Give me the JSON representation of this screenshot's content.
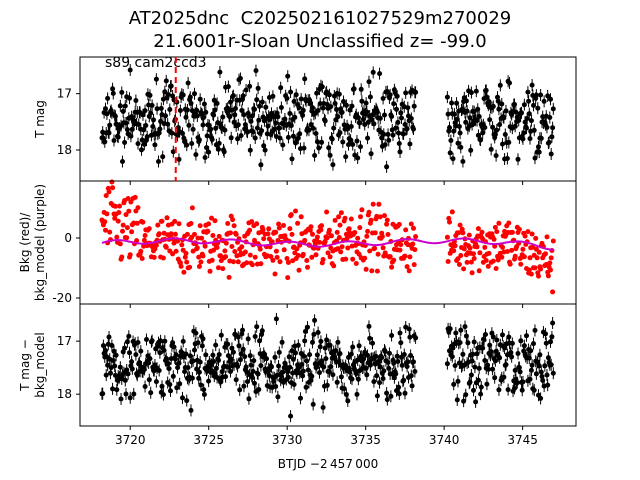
{
  "chart_data": {
    "type": "scatter",
    "title_lines": [
      "AT2025dnc  C202502161027529m270029",
      "21.6001r-Sloan Unclassified z= -99.0"
    ],
    "annotation": "s89 cam2ccd3",
    "xlabel": "BTJD −2 457 000",
    "xlim": [
      3716.8,
      3748.4
    ],
    "xticks": [
      3720,
      3725,
      3730,
      3735,
      3740,
      3745
    ],
    "event_marker_x": 3722.9,
    "event_marker_color": "#ff0000",
    "gap": [
      3738.2,
      3740.2
    ],
    "data_range": [
      3718.2,
      3747.0
    ],
    "panels": [
      {
        "id": "tmag",
        "ylabel": [
          "T mag"
        ],
        "ylim": [
          18.55,
          16.35
        ],
        "yticks": [
          17,
          18
        ],
        "inverted": true,
        "series": [
          {
            "name": "",
            "color": "#000000",
            "style": "points-with-errorbars",
            "center": 17.45,
            "spread": 0.55,
            "min": 16.55,
            "max": 18.45
          }
        ]
      },
      {
        "id": "bkg",
        "ylabel": [
          "Bkg (red)/",
          "bkg_model (purple)"
        ],
        "ylim": [
          -22,
          19
        ],
        "yticks": [
          0,
          -20
        ],
        "inverted": false,
        "series": [
          {
            "name": "Bkg",
            "color": "#ff0000",
            "style": "points",
            "center": -2,
            "spread": 8
          },
          {
            "name": "bkg_model",
            "color": "#cc00cc",
            "style": "line",
            "center": -1.5
          }
        ]
      },
      {
        "id": "tmag_corr",
        "ylabel": [
          "T mag −",
          "bkg_model"
        ],
        "ylim": [
          18.6,
          16.3
        ],
        "yticks": [
          17,
          18
        ],
        "inverted": true,
        "series": [
          {
            "name": "",
            "color": "#000000",
            "style": "points-with-errorbars",
            "center": 17.45,
            "spread": 0.55,
            "min": 16.5,
            "max": 18.55
          }
        ]
      }
    ]
  }
}
